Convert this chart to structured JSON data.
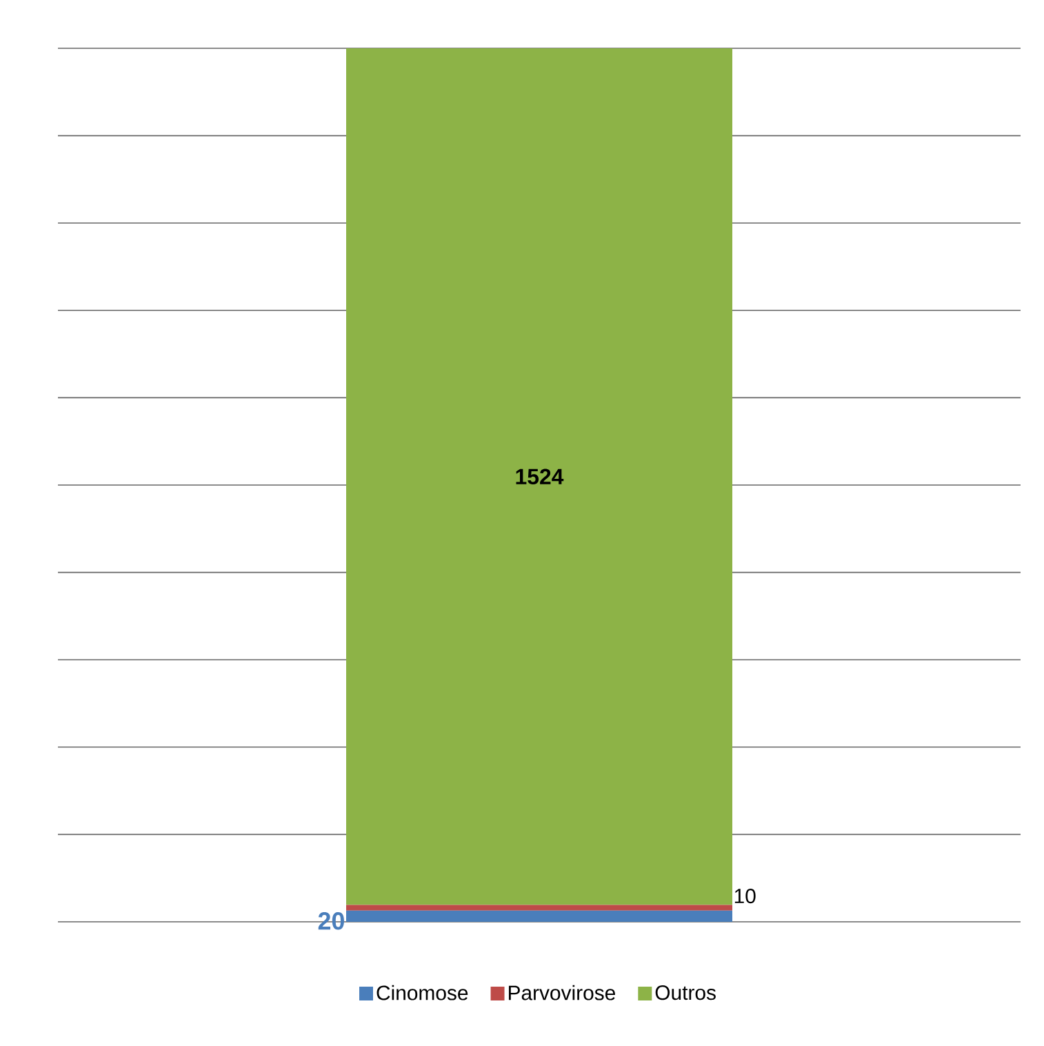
{
  "chart_data": {
    "type": "bar",
    "stacked": true,
    "categories": [
      null
    ],
    "series": [
      {
        "name": "Cinomose",
        "color": "#4a7ebb",
        "values": [
          20
        ]
      },
      {
        "name": "Parvovirose",
        "color": "#be4b48",
        "values": [
          10
        ]
      },
      {
        "name": "Outros",
        "color": "#8db347",
        "values": [
          1524
        ]
      }
    ],
    "ylim": [
      0,
      1554
    ],
    "yticks": [
      {
        "value": 0,
        "label": null
      },
      {
        "value": 155.4,
        "label": null
      },
      {
        "value": 310.8,
        "label": null
      },
      {
        "value": 466.2,
        "label": null
      },
      {
        "value": 621.6,
        "label": null
      },
      {
        "value": 777,
        "label": null
      },
      {
        "value": 932.4,
        "label": null
      },
      {
        "value": 1087.8,
        "label": null
      },
      {
        "value": 1243.2,
        "label": null
      },
      {
        "value": 1398.6,
        "label": null
      },
      {
        "value": 1554,
        "label": null
      }
    ],
    "grid": "y",
    "legend": "bottom",
    "data_labels": true
  }
}
